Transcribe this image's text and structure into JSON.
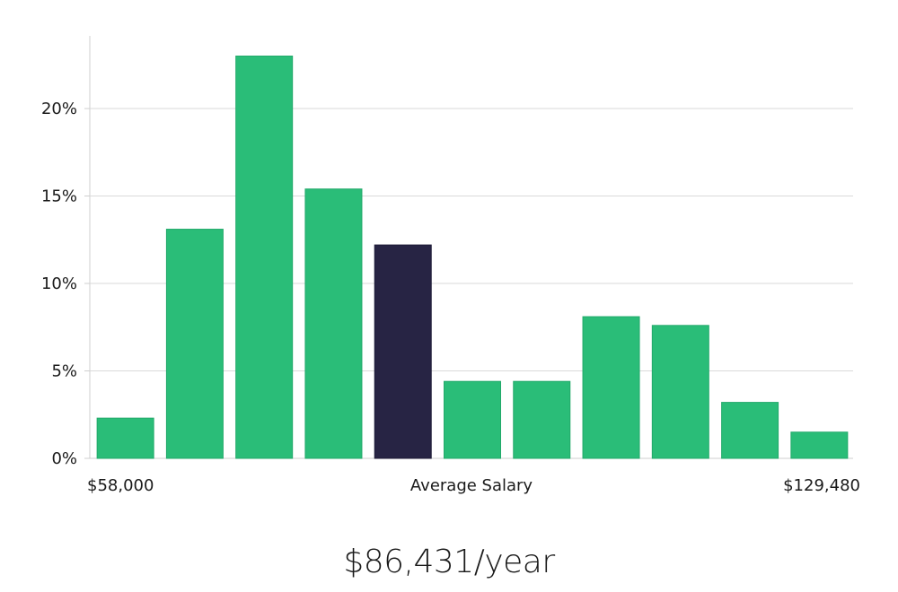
{
  "chart_data": {
    "type": "bar",
    "title": "",
    "xlabel": "Average Salary",
    "ylabel": "",
    "x_start_label": "$58,000",
    "x_end_label": "$129,480",
    "ylim": [
      0,
      24
    ],
    "yticks": [
      0,
      5,
      10,
      15,
      20
    ],
    "ytick_labels": [
      "0%",
      "5%",
      "10%",
      "15%",
      "20%"
    ],
    "grid": true,
    "highlight_index": 4,
    "values": [
      2.3,
      13.1,
      23.0,
      15.4,
      12.2,
      4.4,
      4.4,
      8.1,
      7.6,
      3.2,
      1.5
    ]
  },
  "colors": {
    "bar": "#2abd78",
    "highlight": "#272444",
    "grid": "#d9d9d9",
    "axis": "#cfcfcf"
  },
  "summary": {
    "salary_text": "$86,431/year"
  }
}
